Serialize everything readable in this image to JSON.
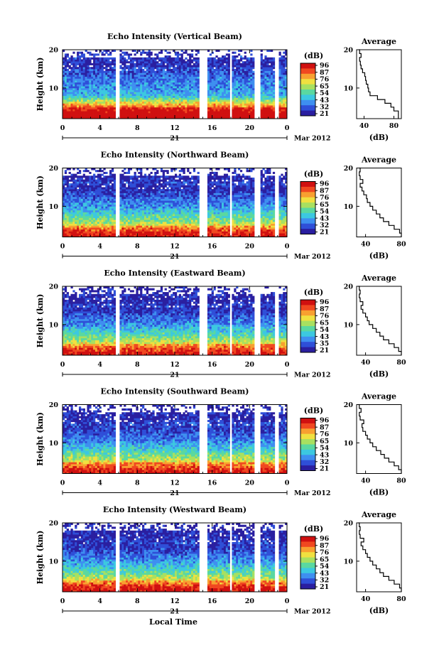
{
  "figure": {
    "average_title": "Average",
    "y_axis_label": "Height (km)",
    "x_axis_label": "Local Time",
    "colorbar_unit": "(dB)",
    "average_xlabel": "(dB)",
    "date_day": "21",
    "date_month": "Mar 2012"
  },
  "chart_data": [
    {
      "type": "heatmap",
      "title": "Echo Intensity (Vertical Beam)",
      "xlabel": "Local Time",
      "ylabel": "Height (km)",
      "x_ticks": [
        "0",
        "4",
        "8",
        "12",
        "16",
        "20",
        "0"
      ],
      "y_ticks": [
        "10",
        "20"
      ],
      "xlim": [
        0,
        24
      ],
      "ylim": [
        2,
        20
      ],
      "colorbar": {
        "label": "(dB)",
        "ticks": [
          "96",
          "87",
          "76",
          "65",
          "54",
          "43",
          "32",
          "21"
        ]
      },
      "data_gaps_hours": [
        [
          5.6,
          6.1
        ],
        [
          14.6,
          15.4
        ],
        [
          17.8,
          18.2
        ],
        [
          20.6,
          21.1
        ],
        [
          22.6,
          23.1
        ]
      ],
      "average_profile": {
        "title": "Average",
        "xlabel": "(dB)",
        "x_ticks": [
          "40",
          "80"
        ],
        "xlim": [
          30,
          90
        ],
        "y_ticks": [
          "10",
          "20"
        ],
        "ylim": [
          2,
          20
        ],
        "heights": [
          2,
          3,
          4,
          5,
          6,
          7,
          8,
          9,
          10,
          11,
          12,
          13,
          14,
          15,
          16,
          17,
          18,
          19,
          20
        ],
        "values": [
          86,
          86,
          80,
          76,
          68,
          58,
          48,
          46,
          45,
          43,
          42,
          41,
          38,
          36,
          35,
          34,
          36,
          34,
          33
        ]
      }
    },
    {
      "type": "heatmap",
      "title": "Echo Intensity (Northward Beam)",
      "xlabel": "Local Time",
      "ylabel": "Height (km)",
      "x_ticks": [
        "0",
        "4",
        "8",
        "12",
        "16",
        "20",
        "0"
      ],
      "y_ticks": [
        "10",
        "20"
      ],
      "xlim": [
        0,
        24
      ],
      "ylim": [
        2,
        20
      ],
      "colorbar": {
        "label": "(dB)",
        "ticks": [
          "96",
          "87",
          "76",
          "65",
          "54",
          "43",
          "32",
          "21"
        ]
      },
      "data_gaps_hours": [
        [
          5.6,
          6.1
        ],
        [
          14.6,
          15.4
        ],
        [
          17.8,
          18.2
        ],
        [
          20.6,
          21.1
        ],
        [
          22.6,
          23.1
        ]
      ],
      "average_profile": {
        "title": "Average",
        "xlabel": "(dB)",
        "x_ticks": [
          "40",
          "80"
        ],
        "xlim": [
          30,
          80
        ],
        "y_ticks": [
          "10",
          "20"
        ],
        "ylim": [
          2,
          20
        ],
        "heights": [
          2,
          3,
          4,
          5,
          6,
          7,
          8,
          9,
          10,
          11,
          12,
          13,
          14,
          15,
          16,
          17,
          18,
          19,
          20
        ],
        "values": [
          80,
          78,
          72,
          66,
          60,
          56,
          52,
          48,
          45,
          42,
          41,
          38,
          36,
          34,
          37,
          34,
          33,
          34,
          33
        ]
      }
    },
    {
      "type": "heatmap",
      "title": "Echo Intensity (Eastward Beam)",
      "xlabel": "Local Time",
      "ylabel": "Height (km)",
      "x_ticks": [
        "0",
        "4",
        "8",
        "12",
        "16",
        "20",
        "0"
      ],
      "y_ticks": [
        "10",
        "20"
      ],
      "xlim": [
        0,
        24
      ],
      "ylim": [
        2,
        20
      ],
      "colorbar": {
        "label": "(dB)",
        "ticks": [
          "96",
          "87",
          "76",
          "65",
          "54",
          "43",
          "35",
          "21"
        ]
      },
      "data_gaps_hours": [
        [
          5.6,
          6.1
        ],
        [
          14.6,
          15.4
        ],
        [
          17.8,
          18.2
        ],
        [
          20.6,
          21.1
        ],
        [
          22.6,
          23.1
        ]
      ],
      "average_profile": {
        "title": "Average",
        "xlabel": "(dB)",
        "x_ticks": [
          "40",
          "80"
        ],
        "xlim": [
          30,
          80
        ],
        "y_ticks": [
          "10",
          "20"
        ],
        "ylim": [
          2,
          20
        ],
        "heights": [
          2,
          3,
          4,
          5,
          6,
          7,
          8,
          9,
          10,
          11,
          12,
          13,
          14,
          15,
          16,
          17,
          18,
          19,
          20
        ],
        "values": [
          80,
          77,
          72,
          66,
          60,
          56,
          52,
          48,
          44,
          42,
          40,
          37,
          35,
          37,
          34,
          33,
          34,
          33,
          32
        ]
      }
    },
    {
      "type": "heatmap",
      "title": "Echo Intensity (Southward Beam)",
      "xlabel": "Local Time",
      "ylabel": "Height (km)",
      "x_ticks": [
        "0",
        "4",
        "8",
        "12",
        "16",
        "20",
        "0"
      ],
      "y_ticks": [
        "10",
        "20"
      ],
      "xlim": [
        0,
        24
      ],
      "ylim": [
        2,
        20
      ],
      "colorbar": {
        "label": "(dB)",
        "ticks": [
          "96",
          "87",
          "76",
          "65",
          "54",
          "43",
          "32",
          "21"
        ]
      },
      "data_gaps_hours": [
        [
          5.6,
          6.1
        ],
        [
          14.6,
          15.4
        ],
        [
          17.8,
          18.2
        ],
        [
          20.6,
          21.1
        ],
        [
          22.6,
          23.1
        ]
      ],
      "average_profile": {
        "title": "Average",
        "xlabel": "(dB)",
        "x_ticks": [
          "40",
          "80"
        ],
        "xlim": [
          30,
          80
        ],
        "y_ticks": [
          "10",
          "20"
        ],
        "ylim": [
          2,
          20
        ],
        "heights": [
          2,
          3,
          4,
          5,
          6,
          7,
          8,
          9,
          10,
          11,
          12,
          13,
          14,
          15,
          16,
          17,
          18,
          19,
          20
        ],
        "values": [
          80,
          77,
          72,
          66,
          61,
          57,
          52,
          48,
          45,
          42,
          40,
          37,
          36,
          38,
          34,
          33,
          35,
          33,
          32
        ]
      }
    },
    {
      "type": "heatmap",
      "title": "Echo Intensity (Westward Beam)",
      "xlabel": "Local Time",
      "ylabel": "Height (km)",
      "x_ticks": [
        "0",
        "4",
        "8",
        "12",
        "16",
        "20",
        "0"
      ],
      "y_ticks": [
        "10",
        "20"
      ],
      "xlim": [
        0,
        24
      ],
      "ylim": [
        2,
        20
      ],
      "colorbar": {
        "label": "(dB)",
        "ticks": [
          "96",
          "87",
          "76",
          "65",
          "54",
          "43",
          "32",
          "21"
        ]
      },
      "data_gaps_hours": [
        [
          5.6,
          6.1
        ],
        [
          14.6,
          15.4
        ],
        [
          17.8,
          18.2
        ],
        [
          20.6,
          21.1
        ],
        [
          22.6,
          23.1
        ]
      ],
      "average_profile": {
        "title": "Average",
        "xlabel": "(dB)",
        "x_ticks": [
          "40",
          "80"
        ],
        "xlim": [
          30,
          80
        ],
        "y_ticks": [
          "10",
          "20"
        ],
        "ylim": [
          2,
          20
        ],
        "heights": [
          2,
          3,
          4,
          5,
          6,
          7,
          8,
          9,
          10,
          11,
          12,
          13,
          14,
          15,
          16,
          17,
          18,
          19,
          20
        ],
        "values": [
          80,
          78,
          72,
          66,
          60,
          56,
          52,
          48,
          45,
          42,
          40,
          37,
          35,
          38,
          34,
          33,
          34,
          33,
          32
        ]
      }
    }
  ],
  "colormap": [
    "#2a1fa0",
    "#2f4fd8",
    "#3e8ff0",
    "#3cc8e0",
    "#5ad8a0",
    "#a8e060",
    "#f0e040",
    "#f8a030",
    "#f04820",
    "#d01010"
  ]
}
